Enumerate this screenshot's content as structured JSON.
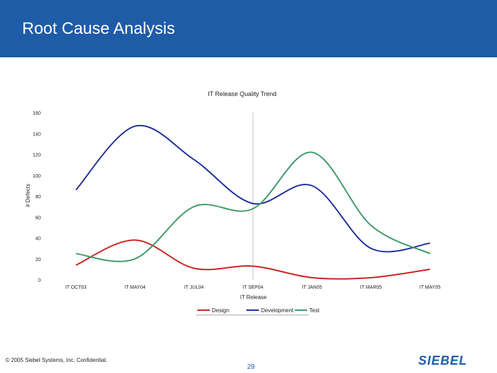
{
  "slide": {
    "title": "Root Cause Analysis",
    "footer_copyright": "© 2005 Siebel Systems, Inc. Confidential.",
    "page_number": "29",
    "logo_text": "SIEBEL"
  },
  "colors": {
    "header_band": "#1f5ca7",
    "design": "#cc2222",
    "development": "#1f2f99",
    "test": "#3f9a6a"
  },
  "chart_data": {
    "type": "line",
    "title": "IT Release Quality Trend",
    "xlabel": "IT Release",
    "ylabel": "# Defects",
    "categories": [
      "IT OCT03",
      "IT MAY04",
      "IT JUL04",
      "IT SEP04",
      "IT JAN05",
      "IT MAR05",
      "IT MAY05"
    ],
    "ylim": [
      0,
      160
    ],
    "yticks": [
      0,
      20,
      40,
      60,
      80,
      100,
      120,
      140,
      160
    ],
    "legend_position": "bottom",
    "smooth": true,
    "series": [
      {
        "name": "Design",
        "color": "#cc2222",
        "values": [
          14,
          38,
          11,
          13,
          2,
          2,
          10
        ]
      },
      {
        "name": "Development",
        "color": "#1f2f99",
        "values": [
          86,
          147,
          115,
          73,
          90,
          30,
          35
        ]
      },
      {
        "name": "Test",
        "color": "#3f9a6a",
        "values": [
          25,
          20,
          70,
          68,
          122,
          52,
          25
        ]
      }
    ]
  }
}
